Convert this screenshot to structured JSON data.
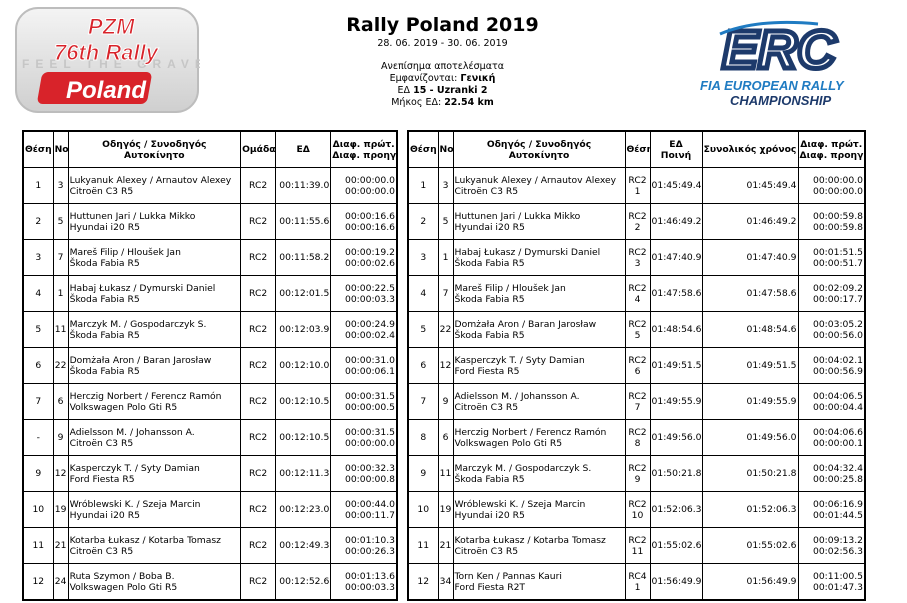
{
  "header": {
    "title": "Rally Poland 2019",
    "dates": "28. 06. 2019 - 30. 06. 2019",
    "line1": "Ανεπίσημα αποτελέσματα",
    "line2_label": "Εμφανίζονται: ",
    "line2_value": "Γενική",
    "line3_label": "ΕΔ ",
    "line3_value": "15 - Uzranki 2",
    "line4_label": "Μήκος ΕΔ: ",
    "line4_value": "22.54 km"
  },
  "logo_left": {
    "line1": "PZM",
    "line2": "76th Rally",
    "line3": "Poland",
    "bg_text": "FEEL THE GRAVEL"
  },
  "logo_right": {
    "brand": "ERC",
    "line1": "FIA EUROPEAN RALLY",
    "line2": "CHAMPIONSHIP"
  },
  "colors": {
    "red": "#d8232a",
    "navy": "#1d3a6b",
    "blue": "#1f7bc2"
  },
  "stage_table": {
    "headers": {
      "pos": "Θέση",
      "no": "Νο",
      "driver_line1": "Οδηγός / Συνοδηγός",
      "driver_line2": "Αυτοκίνητο",
      "class": "Ομάδα",
      "time": "ΕΔ",
      "diff1": "Διαφ. πρώτ.",
      "diff2": "Διαφ. προηγ."
    },
    "rows": [
      {
        "pos": "1",
        "no": "3",
        "driver": "Lukyanuk Alexey / Arnautov Alexey",
        "car": "Citroën C3 R5",
        "cls": "RC2",
        "time": "00:11:39.0",
        "d1": "00:00:00.0",
        "d2": "00:00:00.0"
      },
      {
        "pos": "2",
        "no": "5",
        "driver": "Huttunen Jari / Lukka Mikko",
        "car": "Hyundai i20 R5",
        "cls": "RC2",
        "time": "00:11:55.6",
        "d1": "00:00:16.6",
        "d2": "00:00:16.6"
      },
      {
        "pos": "3",
        "no": "7",
        "driver": "Mareš Filip / Hloušek Jan",
        "car": "Škoda Fabia R5",
        "cls": "RC2",
        "time": "00:11:58.2",
        "d1": "00:00:19.2",
        "d2": "00:00:02.6"
      },
      {
        "pos": "4",
        "no": "1",
        "driver": "Habaj Łukasz / Dymurski Daniel",
        "car": "Škoda Fabia R5",
        "cls": "RC2",
        "time": "00:12:01.5",
        "d1": "00:00:22.5",
        "d2": "00:00:03.3"
      },
      {
        "pos": "5",
        "no": "11",
        "driver": "Marczyk M. / Gospodarczyk S.",
        "car": "Škoda Fabia R5",
        "cls": "RC2",
        "time": "00:12:03.9",
        "d1": "00:00:24.9",
        "d2": "00:00:02.4"
      },
      {
        "pos": "6",
        "no": "22",
        "driver": "Domżała Aron / Baran Jarosław",
        "car": "Škoda Fabia R5",
        "cls": "RC2",
        "time": "00:12:10.0",
        "d1": "00:00:31.0",
        "d2": "00:00:06.1"
      },
      {
        "pos": "7",
        "no": "6",
        "driver": "Herczig Norbert / Ferencz Ramón",
        "car": "Volkswagen Polo Gti R5",
        "cls": "RC2",
        "time": "00:12:10.5",
        "d1": "00:00:31.5",
        "d2": "00:00:00.5"
      },
      {
        "pos": "-",
        "no": "9",
        "driver": "Adielsson M. / Johansson A.",
        "car": "Citroën C3 R5",
        "cls": "RC2",
        "time": "00:12:10.5",
        "d1": "00:00:31.5",
        "d2": "00:00:00.0"
      },
      {
        "pos": "9",
        "no": "12",
        "driver": "Kasperczyk T. / Syty Damian",
        "car": "Ford Fiesta R5",
        "cls": "RC2",
        "time": "00:12:11.3",
        "d1": "00:00:32.3",
        "d2": "00:00:00.8"
      },
      {
        "pos": "10",
        "no": "19",
        "driver": "Wróblewski K. / Szeja Marcin",
        "car": "Hyundai i20 R5",
        "cls": "RC2",
        "time": "00:12:23.0",
        "d1": "00:00:44.0",
        "d2": "00:00:11.7"
      },
      {
        "pos": "11",
        "no": "21",
        "driver": "Kotarba Łukasz / Kotarba Tomasz",
        "car": "Citroën C3 R5",
        "cls": "RC2",
        "time": "00:12:49.3",
        "d1": "00:01:10.3",
        "d2": "00:00:26.3"
      },
      {
        "pos": "12",
        "no": "24",
        "driver": "Ruta Szymon / Boba B.",
        "car": "Volkswagen Polo Gti R5",
        "cls": "RC2",
        "time": "00:12:52.6",
        "d1": "00:01:13.6",
        "d2": "00:00:03.3"
      }
    ]
  },
  "overall_table": {
    "headers": {
      "pos": "Θέση",
      "no": "Νο",
      "driver_line1": "Οδηγός / Συνοδηγός",
      "driver_line2": "Αυτοκίνητο",
      "class": "Θέση",
      "pen_line1": "ΕΔ",
      "pen_line2": "Ποινή",
      "total": "Συνολικός χρόνος",
      "diff1": "Διαφ. πρώτ.",
      "diff2": "Διαφ. προηγ."
    },
    "rows": [
      {
        "pos": "1",
        "no": "3",
        "driver": "Lukyanuk Alexey / Arnautov Alexey",
        "car": "Citroën C3 R5",
        "cls": "RC2",
        "clspos": "1",
        "stage": "01:45:49.4",
        "total": "01:45:49.4",
        "d1": "00:00:00.0",
        "d2": "00:00:00.0"
      },
      {
        "pos": "2",
        "no": "5",
        "driver": "Huttunen Jari / Lukka Mikko",
        "car": "Hyundai i20 R5",
        "cls": "RC2",
        "clspos": "2",
        "stage": "01:46:49.2",
        "total": "01:46:49.2",
        "d1": "00:00:59.8",
        "d2": "00:00:59.8"
      },
      {
        "pos": "3",
        "no": "1",
        "driver": "Habaj Łukasz / Dymurski Daniel",
        "car": "Škoda Fabia R5",
        "cls": "RC2",
        "clspos": "3",
        "stage": "01:47:40.9",
        "total": "01:47:40.9",
        "d1": "00:01:51.5",
        "d2": "00:00:51.7"
      },
      {
        "pos": "4",
        "no": "7",
        "driver": "Mareš Filip / Hloušek Jan",
        "car": "Škoda Fabia R5",
        "cls": "RC2",
        "clspos": "4",
        "stage": "01:47:58.6",
        "total": "01:47:58.6",
        "d1": "00:02:09.2",
        "d2": "00:00:17.7"
      },
      {
        "pos": "5",
        "no": "22",
        "driver": "Domżała Aron / Baran Jarosław",
        "car": "Škoda Fabia R5",
        "cls": "RC2",
        "clspos": "5",
        "stage": "01:48:54.6",
        "total": "01:48:54.6",
        "d1": "00:03:05.2",
        "d2": "00:00:56.0"
      },
      {
        "pos": "6",
        "no": "12",
        "driver": "Kasperczyk T. / Syty Damian",
        "car": "Ford Fiesta R5",
        "cls": "RC2",
        "clspos": "6",
        "stage": "01:49:51.5",
        "total": "01:49:51.5",
        "d1": "00:04:02.1",
        "d2": "00:00:56.9"
      },
      {
        "pos": "7",
        "no": "9",
        "driver": "Adielsson M. / Johansson A.",
        "car": "Citroën C3 R5",
        "cls": "RC2",
        "clspos": "7",
        "stage": "01:49:55.9",
        "total": "01:49:55.9",
        "d1": "00:04:06.5",
        "d2": "00:00:04.4"
      },
      {
        "pos": "8",
        "no": "6",
        "driver": "Herczig Norbert / Ferencz Ramón",
        "car": "Volkswagen Polo Gti R5",
        "cls": "RC2",
        "clspos": "8",
        "stage": "01:49:56.0",
        "total": "01:49:56.0",
        "d1": "00:04:06.6",
        "d2": "00:00:00.1"
      },
      {
        "pos": "9",
        "no": "11",
        "driver": "Marczyk M. / Gospodarczyk S.",
        "car": "Škoda Fabia R5",
        "cls": "RC2",
        "clspos": "9",
        "stage": "01:50:21.8",
        "total": "01:50:21.8",
        "d1": "00:04:32.4",
        "d2": "00:00:25.8"
      },
      {
        "pos": "10",
        "no": "19",
        "driver": "Wróblewski K. / Szeja Marcin",
        "car": "Hyundai i20 R5",
        "cls": "RC2",
        "clspos": "10",
        "stage": "01:52:06.3",
        "total": "01:52:06.3",
        "d1": "00:06:16.9",
        "d2": "00:01:44.5"
      },
      {
        "pos": "11",
        "no": "21",
        "driver": "Kotarba Łukasz / Kotarba Tomasz",
        "car": "Citroën C3 R5",
        "cls": "RC2",
        "clspos": "11",
        "stage": "01:55:02.6",
        "total": "01:55:02.6",
        "d1": "00:09:13.2",
        "d2": "00:02:56.3"
      },
      {
        "pos": "12",
        "no": "34",
        "driver": "Torn Ken / Pannas Kauri",
        "car": "Ford Fiesta R2T",
        "cls": "RC4",
        "clspos": "1",
        "stage": "01:56:49.9",
        "total": "01:56:49.9",
        "d1": "00:11:00.5",
        "d2": "00:01:47.3"
      }
    ]
  }
}
